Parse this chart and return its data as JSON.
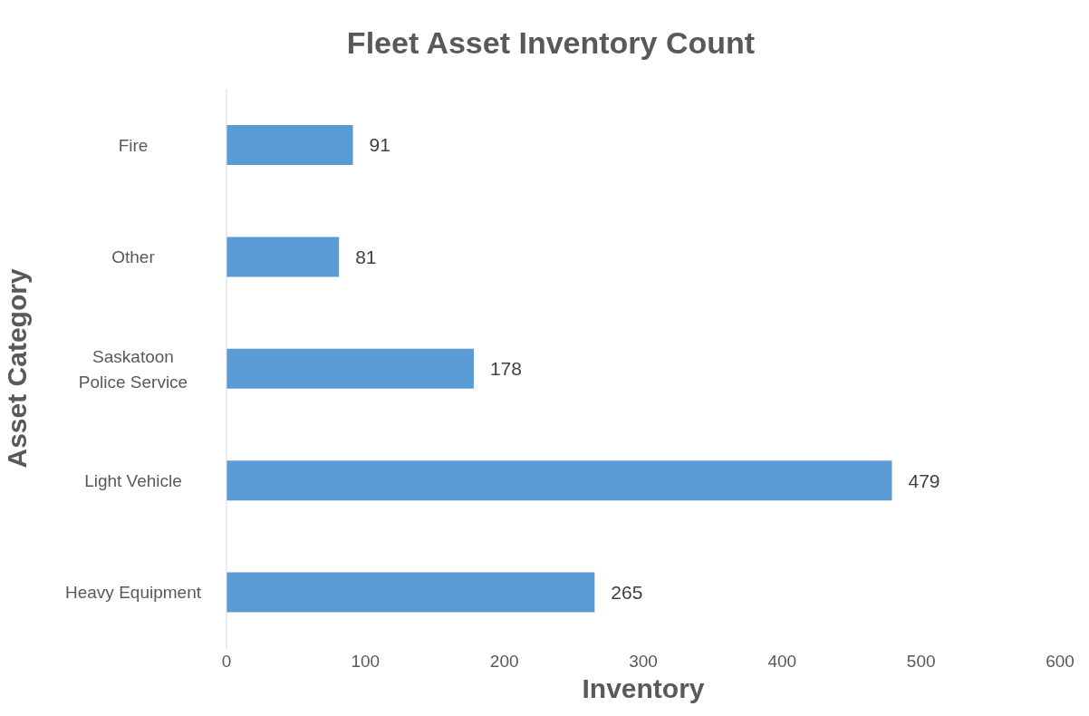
{
  "chart_data": {
    "type": "bar",
    "orientation": "horizontal",
    "title": "Fleet Asset Inventory Count",
    "xlabel": "Inventory",
    "ylabel": "Asset Category",
    "categories": [
      "Fire",
      "Other",
      "Saskatoon Police Service",
      "Light Vehicle",
      "Heavy Equipment"
    ],
    "values": [
      91,
      81,
      178,
      479,
      265
    ],
    "color": "#5b9bd5",
    "xlim": [
      0,
      600
    ],
    "xticks": [
      0,
      100,
      200,
      300,
      400,
      500,
      600
    ],
    "data_labels": true,
    "grid": false,
    "legend": false
  }
}
